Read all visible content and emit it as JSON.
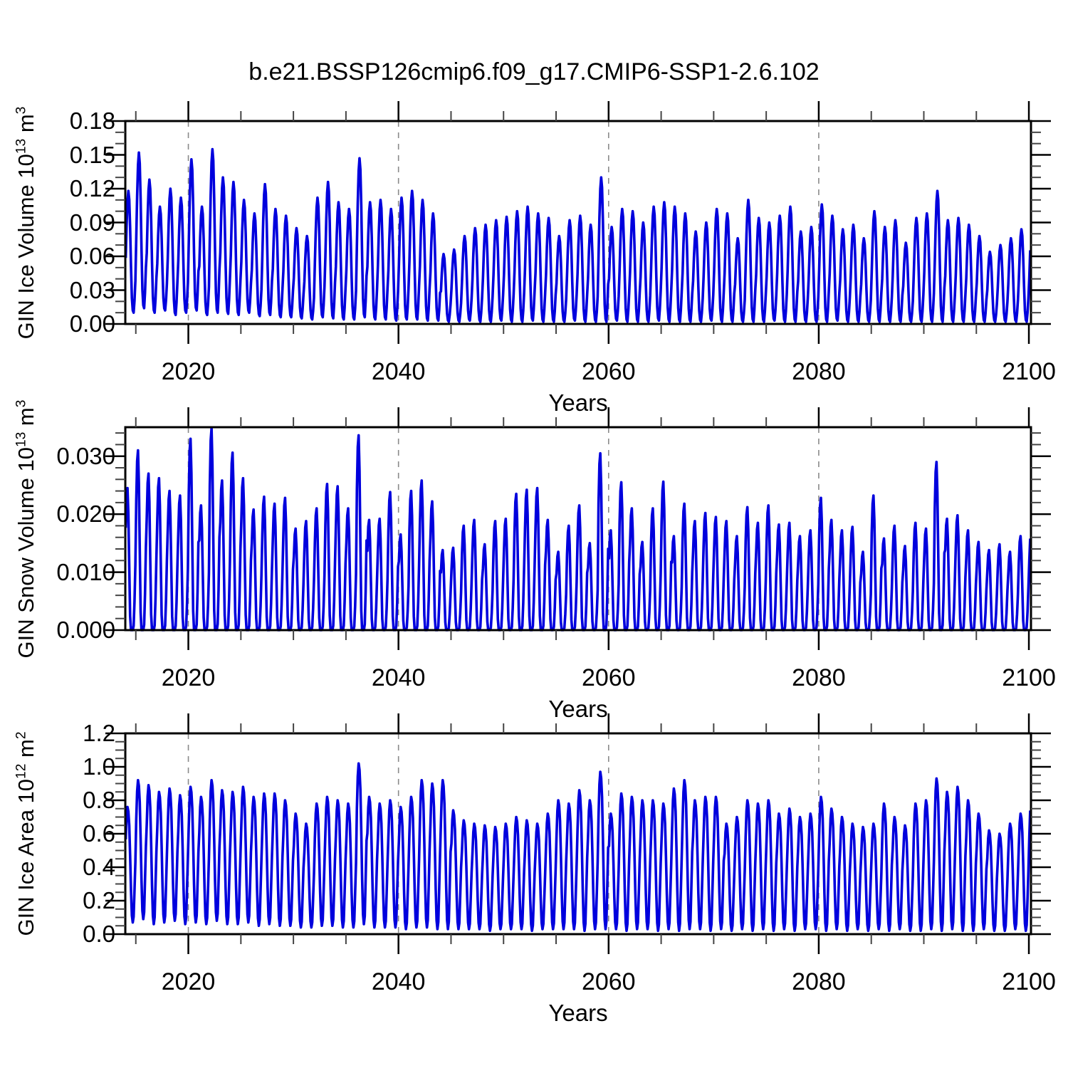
{
  "header": {
    "title": "b.e21.BSSP126cmip6.f09_g17.CMIP6-SSP1-2.6.102"
  },
  "style": {
    "line_color": "#0000dd",
    "grid_color": "#8a8a8a",
    "frame_color": "#000000",
    "minor_tick_color": "#444444",
    "background": "#ffffff"
  },
  "x_axis": {
    "label": "Years",
    "range": [
      2014,
      2100.2
    ],
    "major_tick_years": [
      2020,
      2040,
      2060,
      2080,
      2100
    ],
    "major_tick_labels": [
      "2020",
      "2040",
      "2060",
      "2080",
      "2100"
    ],
    "minor_step_years": 5,
    "gridline_years": [
      2020,
      2040,
      2060,
      2080
    ]
  },
  "chart_data": [
    {
      "type": "line",
      "id": "ice-volume",
      "ylabel": {
        "name": "GIN Ice Volume",
        "scale_base": "10",
        "scale_exp": "13",
        "unit": "m",
        "unit_exp": "3"
      },
      "ylim": [
        0,
        0.18
      ],
      "ytick_values": [
        0.0,
        0.03,
        0.06,
        0.09,
        0.12,
        0.15,
        0.18
      ],
      "ytick_labels": [
        "0.00",
        "0.03",
        "0.06",
        "0.09",
        "0.12",
        "0.15",
        "0.18"
      ],
      "y_minor_step": 0.01,
      "x_start_year": 2014,
      "samples_per_year": 12,
      "seasonal_shape_note": "monthly weights Jan-Dec, fraction of annual min-max range; annual peak in April, minimum in October",
      "seasonal_shape": [
        0.45,
        0.72,
        0.92,
        1.0,
        0.93,
        0.7,
        0.38,
        0.12,
        0.02,
        0.0,
        0.1,
        0.26
      ],
      "annual_max": [
        0.118,
        0.152,
        0.128,
        0.104,
        0.12,
        0.112,
        0.146,
        0.104,
        0.155,
        0.13,
        0.126,
        0.11,
        0.098,
        0.124,
        0.102,
        0.096,
        0.085,
        0.078,
        0.112,
        0.126,
        0.108,
        0.102,
        0.147,
        0.108,
        0.11,
        0.102,
        0.112,
        0.118,
        0.11,
        0.098,
        0.062,
        0.066,
        0.078,
        0.085,
        0.088,
        0.092,
        0.095,
        0.1,
        0.104,
        0.098,
        0.094,
        0.078,
        0.092,
        0.096,
        0.088,
        0.13,
        0.086,
        0.102,
        0.1,
        0.09,
        0.104,
        0.108,
        0.104,
        0.098,
        0.082,
        0.09,
        0.102,
        0.098,
        0.076,
        0.11,
        0.094,
        0.09,
        0.096,
        0.104,
        0.082,
        0.086,
        0.106,
        0.096,
        0.084,
        0.088,
        0.076,
        0.1,
        0.086,
        0.092,
        0.072,
        0.094,
        0.098,
        0.118,
        0.092,
        0.094,
        0.088,
        0.078,
        0.064,
        0.07,
        0.076,
        0.084,
        0.09
      ],
      "annual_min": [
        0.01,
        0.014,
        0.01,
        0.012,
        0.008,
        0.01,
        0.012,
        0.008,
        0.01,
        0.009,
        0.008,
        0.01,
        0.007,
        0.008,
        0.006,
        0.006,
        0.005,
        0.004,
        0.006,
        0.005,
        0.004,
        0.004,
        0.006,
        0.004,
        0.004,
        0.003,
        0.004,
        0.004,
        0.003,
        0.003,
        0.002,
        0.002,
        0.003,
        0.002,
        0.002,
        0.003,
        0.002,
        0.002,
        0.003,
        0.002,
        0.002,
        0.002,
        0.003,
        0.002,
        0.002,
        0.002,
        0.003,
        0.002,
        0.002,
        0.002,
        0.003,
        0.002,
        0.002,
        0.002,
        0.002,
        0.003,
        0.002,
        0.002,
        0.002,
        0.002,
        0.002,
        0.003,
        0.002,
        0.002,
        0.002,
        0.002,
        0.002,
        0.003,
        0.002,
        0.002,
        0.002,
        0.002,
        0.002,
        0.002,
        0.002,
        0.002,
        0.002,
        0.002,
        0.002,
        0.002,
        0.002,
        0.002,
        0.002,
        0.002,
        0.002,
        0.002,
        0.002
      ]
    },
    {
      "type": "line",
      "id": "snow-volume",
      "ylabel": {
        "name": "GIN Snow Volume",
        "scale_base": "10",
        "scale_exp": "13",
        "unit": "m",
        "unit_exp": "3"
      },
      "ylim": [
        0,
        0.035
      ],
      "ytick_values": [
        0.0,
        0.01,
        0.02,
        0.03
      ],
      "ytick_labels": [
        "0.000",
        "0.010",
        "0.020",
        "0.030"
      ],
      "y_minor_step": 0.002,
      "x_start_year": 2014,
      "samples_per_year": 12,
      "seasonal_shape_note": "monthly weights Jan-Dec; snow vanishes Jul-Sep (flat zero summer minimum), peak in March",
      "seasonal_shape": [
        0.72,
        0.94,
        1.0,
        0.82,
        0.45,
        0.1,
        0.0,
        0.0,
        0.0,
        0.03,
        0.2,
        0.46
      ],
      "annual_max": [
        0.0245,
        0.031,
        0.027,
        0.0262,
        0.024,
        0.0232,
        0.033,
        0.0215,
        0.0348,
        0.0258,
        0.0306,
        0.0262,
        0.0208,
        0.023,
        0.0218,
        0.0228,
        0.0175,
        0.0188,
        0.021,
        0.0252,
        0.0248,
        0.021,
        0.0336,
        0.019,
        0.0192,
        0.0238,
        0.0165,
        0.024,
        0.0258,
        0.0222,
        0.0138,
        0.0142,
        0.018,
        0.019,
        0.0148,
        0.0188,
        0.0192,
        0.0235,
        0.0242,
        0.0245,
        0.019,
        0.0135,
        0.018,
        0.0215,
        0.015,
        0.0305,
        0.0172,
        0.0255,
        0.021,
        0.0152,
        0.021,
        0.0256,
        0.0162,
        0.0218,
        0.0188,
        0.0202,
        0.0195,
        0.0188,
        0.0162,
        0.0212,
        0.0185,
        0.0215,
        0.0182,
        0.0185,
        0.0162,
        0.0172,
        0.0228,
        0.019,
        0.0172,
        0.0178,
        0.0135,
        0.0232,
        0.0158,
        0.018,
        0.0145,
        0.0185,
        0.0175,
        0.029,
        0.0192,
        0.0198,
        0.0172,
        0.0152,
        0.0138,
        0.0148,
        0.0135,
        0.0162,
        0.0168
      ],
      "annual_min": 0.0
    },
    {
      "type": "line",
      "id": "ice-area",
      "ylabel": {
        "name": "GIN Ice Area",
        "scale_base": "10",
        "scale_exp": "12",
        "unit": "m",
        "unit_exp": "2"
      },
      "ylim": [
        0,
        1.2
      ],
      "ytick_values": [
        0.0,
        0.2,
        0.4,
        0.6,
        0.8,
        1.0,
        1.2
      ],
      "ytick_labels": [
        "0.0",
        "0.2",
        "0.4",
        "0.6",
        "0.8",
        "1.0",
        "1.2"
      ],
      "y_minor_step": 0.05,
      "x_start_year": 2014,
      "samples_per_year": 12,
      "seasonal_shape_note": "monthly weights Jan-Dec; broad winter maximum (Feb-Apr), minimum in September",
      "seasonal_shape": [
        0.72,
        0.92,
        1.0,
        0.96,
        0.84,
        0.58,
        0.28,
        0.06,
        0.0,
        0.05,
        0.28,
        0.52
      ],
      "annual_max": [
        0.76,
        0.92,
        0.89,
        0.85,
        0.87,
        0.83,
        0.88,
        0.82,
        0.92,
        0.86,
        0.85,
        0.88,
        0.82,
        0.84,
        0.84,
        0.8,
        0.72,
        0.66,
        0.78,
        0.82,
        0.8,
        0.78,
        1.02,
        0.82,
        0.78,
        0.8,
        0.76,
        0.82,
        0.92,
        0.9,
        0.92,
        0.74,
        0.68,
        0.66,
        0.65,
        0.64,
        0.66,
        0.7,
        0.68,
        0.66,
        0.72,
        0.8,
        0.78,
        0.86,
        0.8,
        0.97,
        0.72,
        0.84,
        0.82,
        0.8,
        0.8,
        0.78,
        0.87,
        0.92,
        0.8,
        0.82,
        0.82,
        0.66,
        0.7,
        0.8,
        0.78,
        0.8,
        0.72,
        0.75,
        0.7,
        0.72,
        0.82,
        0.75,
        0.7,
        0.66,
        0.64,
        0.66,
        0.78,
        0.7,
        0.65,
        0.78,
        0.8,
        0.93,
        0.85,
        0.88,
        0.8,
        0.72,
        0.62,
        0.6,
        0.66,
        0.72,
        0.8
      ],
      "annual_min": [
        0.07,
        0.09,
        0.06,
        0.07,
        0.08,
        0.06,
        0.07,
        0.06,
        0.08,
        0.06,
        0.06,
        0.07,
        0.05,
        0.06,
        0.05,
        0.05,
        0.04,
        0.04,
        0.05,
        0.05,
        0.04,
        0.04,
        0.06,
        0.04,
        0.04,
        0.04,
        0.03,
        0.04,
        0.04,
        0.03,
        0.03,
        0.03,
        0.03,
        0.03,
        0.02,
        0.03,
        0.03,
        0.03,
        0.02,
        0.03,
        0.03,
        0.03,
        0.03,
        0.02,
        0.03,
        0.03,
        0.03,
        0.02,
        0.03,
        0.03,
        0.02,
        0.03,
        0.02,
        0.03,
        0.03,
        0.02,
        0.03,
        0.02,
        0.03,
        0.02,
        0.03,
        0.02,
        0.03,
        0.02,
        0.03,
        0.03,
        0.02,
        0.03,
        0.02,
        0.03,
        0.02,
        0.03,
        0.02,
        0.03,
        0.02,
        0.02,
        0.03,
        0.02,
        0.03,
        0.02,
        0.02,
        0.03,
        0.02,
        0.02,
        0.03,
        0.02,
        0.03
      ]
    }
  ]
}
